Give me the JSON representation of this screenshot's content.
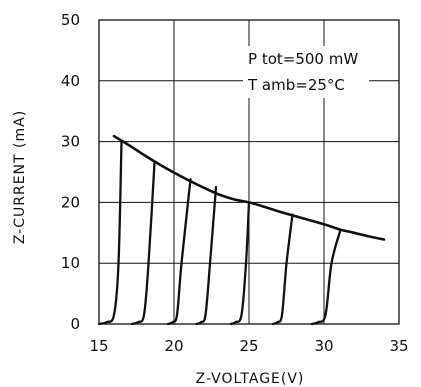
{
  "chart_data": {
    "type": "line",
    "title": "",
    "xlabel": "Z-VOLTAGE(V)",
    "ylabel": "Z-CURRENT (mA)",
    "xlim": [
      15,
      35
    ],
    "ylim": [
      0,
      50
    ],
    "x_ticks": [
      "15",
      "20",
      "25",
      "30",
      "35"
    ],
    "y_ticks": [
      "0",
      "10",
      "20",
      "30",
      "40",
      "50"
    ],
    "grid": true,
    "annotations": [
      "P tot=500 mW",
      "T amb=25°C"
    ],
    "series": [
      {
        "x": [
          15.0,
          15.5,
          16.0,
          16.3,
          16.5
        ],
        "y": [
          0,
          0.3,
          1.5,
          10,
          30
        ]
      },
      {
        "x": [
          17.2,
          17.6,
          18.0,
          18.3,
          18.7
        ],
        "y": [
          0,
          0.3,
          1.5,
          10,
          26.5
        ]
      },
      {
        "x": [
          19.6,
          19.9,
          20.2,
          20.5,
          21.1
        ],
        "y": [
          0,
          0.3,
          1.5,
          10,
          23.8
        ]
      },
      {
        "x": [
          21.5,
          21.8,
          22.1,
          22.4,
          22.8
        ],
        "y": [
          0,
          0.3,
          1.5,
          10,
          22.5
        ]
      },
      {
        "x": [
          23.8,
          24.1,
          24.5,
          24.8,
          25.0
        ],
        "y": [
          0,
          0.3,
          1.5,
          10,
          20
        ]
      },
      {
        "x": [
          26.6,
          26.9,
          27.2,
          27.5,
          27.9
        ],
        "y": [
          0,
          0.3,
          1.5,
          10,
          18
        ]
      },
      {
        "x": [
          29.2,
          29.6,
          30.1,
          30.5,
          31.1
        ],
        "y": [
          0,
          0.3,
          1.5,
          10,
          15.5
        ]
      }
    ],
    "envelope": {
      "x": [
        16.0,
        17.0,
        18.0,
        19.0,
        20.0,
        21.0,
        22.0,
        23.0,
        24.0,
        25.0,
        26.0,
        27.0,
        28.0,
        29.0,
        30.0,
        31.0,
        32.0,
        33.0,
        34.0
      ],
      "y": [
        30.9,
        29.4,
        27.8,
        26.3,
        24.9,
        23.6,
        22.4,
        21.3,
        20.5,
        20.0,
        19.3,
        18.5,
        17.8,
        17.1,
        16.4,
        15.6,
        15.0,
        14.4,
        13.9
      ]
    }
  }
}
